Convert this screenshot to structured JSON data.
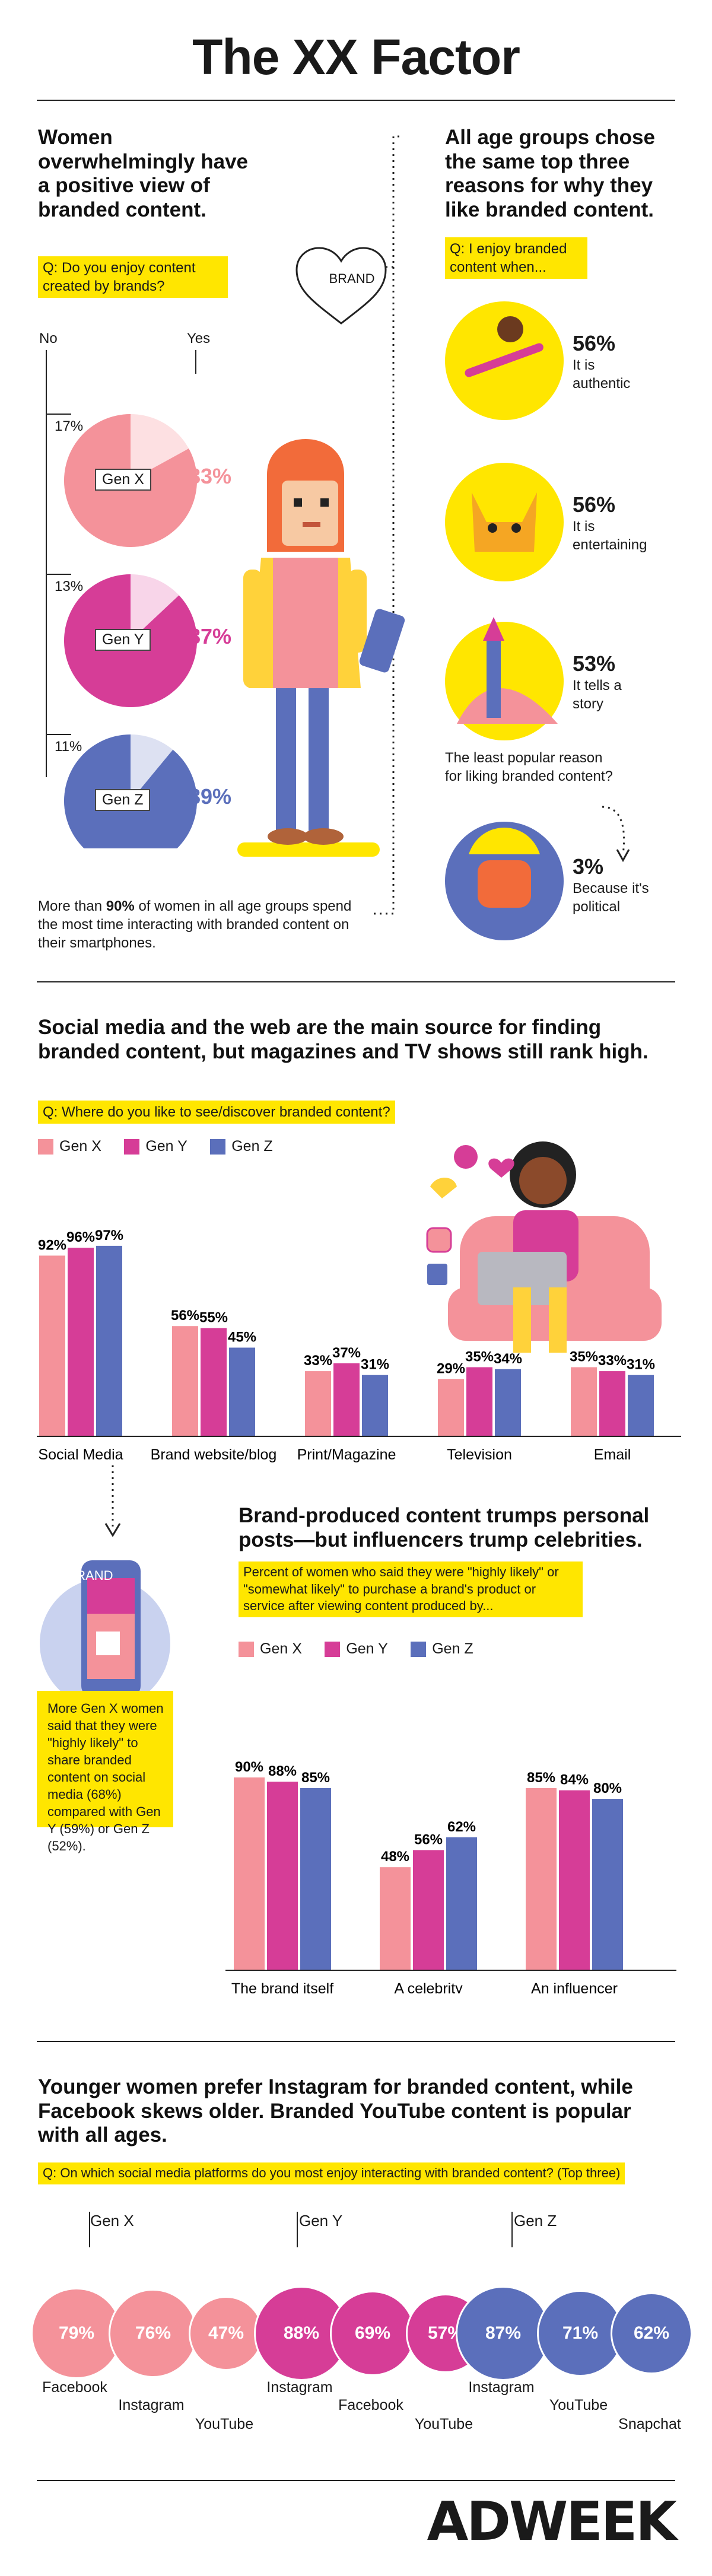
{
  "title": "The XX Factor",
  "sec1": {
    "heading": "Women overwhelmingly have a positive view of branded content.",
    "question": "Q: Do you enjoy content created by brands?",
    "no_label": "No",
    "yes_label": "Yes",
    "brand_heart": "BRAND",
    "footnote_pre": "More than ",
    "footnote_bold": "90%",
    "footnote_post": " of women in all age groups spend the most time interacting with branded content on their smartphones."
  },
  "sec1_right": {
    "heading": "All age groups chose the same top three reasons for why they like branded content.",
    "question": "Q: I enjoy branded content when...",
    "reasons": [
      {
        "pct": "56%",
        "text": "It is authentic"
      },
      {
        "pct": "56%",
        "text": "It is entertaining"
      },
      {
        "pct": "53%",
        "text": "It tells a story"
      }
    ],
    "least_q": "The least popular reason for liking branded content?",
    "least_pct": "3%",
    "least_text": "Because it's political"
  },
  "sec2": {
    "heading": "Social media and the web are the main source for finding branded content, but magazines and TV shows still rank high.",
    "question": "Q: Where do you like to see/discover branded content?"
  },
  "sec3": {
    "heading": "Brand-produced content trumps personal posts—but influencers trump celebrities.",
    "question": "Percent of women who said they were \"highly likely\" or \"somewhat likely\" to purchase a brand's product or service after viewing content produced by...",
    "phone_brand": "BRAND",
    "sidebar": "More Gen X women said that they were \"highly likely\" to share branded content on social media (68%) compared with Gen Y (59%) or Gen Z (52%)."
  },
  "sec4": {
    "heading": "Younger women prefer Instagram for branded content, while Facebook skews older. Branded YouTube content is popular with all ages.",
    "question": "Q: On which social media platforms do you most enjoy interacting with branded content? (Top three)"
  },
  "footer_logo": "ADWEEK",
  "colors": {
    "genx": "#f4929a",
    "geny": "#d63d97",
    "genz": "#5b6fbb",
    "yellow": "#ffe600"
  },
  "chart_data": [
    {
      "type": "pie",
      "title": "Q: Do you enjoy content created by brands?",
      "series": [
        {
          "name": "Gen X",
          "no": 17,
          "yes": 83,
          "no_label": "17%",
          "yes_label": "83%"
        },
        {
          "name": "Gen Y",
          "no": 13,
          "yes": 87,
          "no_label": "13%",
          "yes_label": "87%"
        },
        {
          "name": "Gen Z",
          "no": 11,
          "yes": 89,
          "no_label": "11%",
          "yes_label": "89%"
        }
      ]
    },
    {
      "type": "bar",
      "title": "Q: Where do you like to see/discover branded content?",
      "categories": [
        "Social Media",
        "Brand website/blog",
        "Print/Magazine",
        "Television",
        "Email"
      ],
      "series": [
        {
          "name": "Gen X",
          "values": [
            92,
            56,
            33,
            29,
            35
          ]
        },
        {
          "name": "Gen Y",
          "values": [
            96,
            55,
            37,
            35,
            33
          ]
        },
        {
          "name": "Gen Z",
          "values": [
            97,
            45,
            31,
            34,
            31
          ]
        }
      ],
      "ylim": [
        0,
        100
      ]
    },
    {
      "type": "bar",
      "title": "Percent of women who said they were \"highly likely\" or \"somewhat likely\" to purchase a brand's product or service after viewing content produced by...",
      "categories": [
        "The brand itself",
        "A celebrity",
        "An influencer"
      ],
      "series": [
        {
          "name": "Gen X",
          "values": [
            90,
            48,
            85
          ]
        },
        {
          "name": "Gen Y",
          "values": [
            88,
            56,
            84
          ]
        },
        {
          "name": "Gen Z",
          "values": [
            85,
            62,
            80
          ]
        }
      ],
      "ylim": [
        0,
        100
      ]
    },
    {
      "type": "bubble",
      "title": "Q: On which social media platforms do you most enjoy interacting with branded content? (Top three)",
      "groups": [
        {
          "name": "Gen X",
          "items": [
            {
              "platform": "Facebook",
              "value": 79
            },
            {
              "platform": "Instagram",
              "value": 76
            },
            {
              "platform": "YouTube",
              "value": 47
            }
          ]
        },
        {
          "name": "Gen Y",
          "items": [
            {
              "platform": "Instagram",
              "value": 88
            },
            {
              "platform": "Facebook",
              "value": 69
            },
            {
              "platform": "YouTube",
              "value": 57
            }
          ]
        },
        {
          "name": "Gen Z",
          "items": [
            {
              "platform": "Instagram",
              "value": 87
            },
            {
              "platform": "YouTube",
              "value": 71
            },
            {
              "platform": "Snapchat",
              "value": 62
            }
          ]
        }
      ]
    }
  ]
}
